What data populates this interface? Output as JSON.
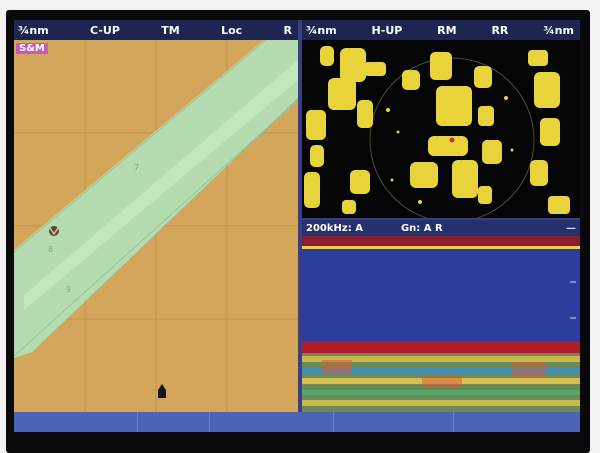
{
  "left_panel": {
    "header": {
      "range": "¾nm",
      "orientation": "C-UP",
      "motion": "TM",
      "loc": "Loc",
      "r": "R"
    },
    "tag": "S&M"
  },
  "right_panel": {
    "header": {
      "range": "¾nm",
      "orientation": "H-UP",
      "rm": "RM",
      "rr": "RR",
      "range_right": "¾nm"
    }
  },
  "sonar": {
    "frequency": "200kHz: A",
    "gain": "Gn: A R",
    "indicator": "—"
  },
  "colors": {
    "land": "#d3a65b",
    "shallow_water": "#b4dcb0",
    "radar_echo": "#e8d43a",
    "radar_bg": "#050505",
    "sonar_water": "#2c3e9c",
    "seabed": "#b01c28",
    "header_bg": "#1e2550",
    "status_bg": "#4d63b8"
  },
  "icons": {
    "vessel": "boat-icon",
    "waypoint": "buoy-icon"
  }
}
